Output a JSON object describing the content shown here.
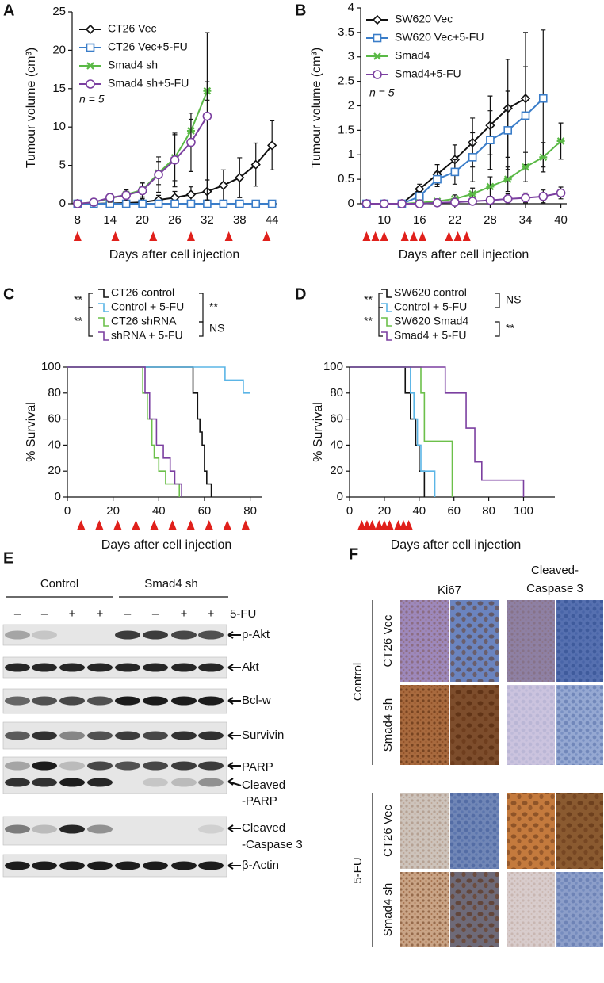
{
  "chart_data": [
    {
      "panel": "A",
      "type": "line",
      "ylabel": "Tumour volume (cm³)",
      "xlabel": "Days after cell injection",
      "annotation": "n = 5",
      "x": [
        8,
        11,
        14,
        17,
        20,
        23,
        26,
        29,
        32,
        35,
        38,
        41,
        44
      ],
      "xlim": [
        7,
        45
      ],
      "xticks": [
        8,
        14,
        20,
        26,
        32,
        38,
        44
      ],
      "ylim": [
        0,
        25
      ],
      "yticks": [
        0,
        5,
        10,
        15,
        20,
        25
      ],
      "treatment_days": [
        8,
        15,
        22,
        29,
        36,
        43
      ],
      "series": [
        {
          "name": "CT26 Vec",
          "color": "#111111",
          "marker": "diamond",
          "values": [
            0,
            0,
            0.05,
            0.1,
            0.2,
            0.5,
            0.8,
            1.2,
            1.6,
            2.4,
            3.4,
            5.1,
            7.6
          ],
          "errors": [
            0,
            0,
            0.1,
            0.2,
            0.3,
            0.6,
            0.8,
            1.0,
            1.5,
            2.0,
            2.6,
            2.8,
            3.2
          ]
        },
        {
          "name": "CT26 Vec+5-FU",
          "color": "#3a7dc9",
          "marker": "square",
          "values": [
            0,
            0,
            0,
            0,
            0,
            0,
            0,
            0,
            0,
            0,
            0,
            0,
            0
          ],
          "errors": [
            0,
            0,
            0,
            0,
            0,
            0,
            0.1,
            0.1,
            0.2,
            0.2,
            0.2,
            0.3,
            0.3
          ]
        },
        {
          "name": "Smad4 sh",
          "color": "#5ab946",
          "marker": "cross",
          "values": [
            0,
            0.2,
            0.7,
            1.2,
            1.8,
            4.0,
            6.0,
            9.5,
            14.7,
            null,
            null,
            null,
            null
          ],
          "errors": [
            0,
            0.3,
            0.5,
            0.6,
            0.9,
            1.5,
            3,
            1.5,
            1.2,
            null,
            null,
            null,
            null
          ]
        },
        {
          "name": "Smad4 sh+5-FU",
          "color": "#7b3fa0",
          "marker": "circle",
          "values": [
            0,
            0.2,
            0.8,
            1.1,
            1.7,
            3.8,
            5.7,
            8.0,
            11.4,
            null,
            null,
            null,
            null
          ],
          "errors": [
            0,
            0.3,
            0.5,
            0.7,
            1,
            2.3,
            3.5,
            3.8,
            10.9,
            null,
            null,
            null,
            null
          ]
        }
      ]
    },
    {
      "panel": "B",
      "type": "line",
      "ylabel": "Tumour volume (cm³)",
      "xlabel": "Days after cell injection",
      "annotation": "n = 5",
      "x": [
        7,
        10,
        13,
        16,
        19,
        22,
        25,
        28,
        31,
        34,
        37,
        40
      ],
      "xlim": [
        6,
        41
      ],
      "xticks": [
        10,
        16,
        22,
        28,
        34,
        40
      ],
      "ylim": [
        0,
        4
      ],
      "yticks": [
        0,
        0.5,
        1,
        1.5,
        2,
        2.5,
        3,
        3.5,
        4
      ],
      "treatment_days": [
        7,
        8.5,
        10,
        13.5,
        15,
        16.5,
        21,
        22.5,
        24
      ],
      "series": [
        {
          "name": "SW620 Vec",
          "color": "#111111",
          "marker": "diamond",
          "values": [
            0,
            0,
            0,
            0.3,
            0.6,
            0.9,
            1.25,
            1.6,
            1.95,
            2.15,
            null,
            null
          ],
          "errors": [
            0,
            0,
            0,
            0.1,
            0.2,
            0.3,
            0.5,
            0.6,
            1.0,
            1.35,
            null,
            null
          ]
        },
        {
          "name": "SW620 Vec+5-FU",
          "color": "#3a7dc9",
          "marker": "square",
          "values": [
            0,
            0,
            0,
            0.15,
            0.5,
            0.65,
            0.95,
            1.3,
            1.5,
            1.8,
            2.15,
            null
          ],
          "errors": [
            0,
            0,
            0,
            0.1,
            0.15,
            0.25,
            0.5,
            0.6,
            0.8,
            1.0,
            1.4,
            null
          ]
        },
        {
          "name": "Smad4",
          "color": "#5ab946",
          "marker": "cross",
          "values": [
            0,
            0,
            0,
            0.02,
            0.05,
            0.1,
            0.2,
            0.35,
            0.5,
            0.75,
            0.95,
            1.28
          ],
          "errors": [
            0,
            0,
            0,
            0.03,
            0.05,
            0.08,
            0.12,
            0.2,
            0.25,
            0.3,
            0.3,
            0.37
          ]
        },
        {
          "name": "Smad4+5-FU",
          "color": "#7b3fa0",
          "marker": "circle",
          "values": [
            0,
            0,
            0,
            0,
            0.02,
            0.03,
            0.05,
            0.07,
            0.1,
            0.12,
            0.15,
            0.22
          ],
          "errors": [
            0,
            0,
            0,
            0,
            0.02,
            0.04,
            0.05,
            0.08,
            0.1,
            0.1,
            0.13,
            0.12
          ]
        }
      ]
    },
    {
      "panel": "C",
      "type": "survival",
      "ylabel": "% Survival",
      "xlabel": "Days after cell injection",
      "xlim": [
        0,
        85
      ],
      "xticks": [
        0,
        20,
        40,
        60,
        80
      ],
      "ylim": [
        0,
        100
      ],
      "yticks": [
        0,
        20,
        40,
        60,
        80,
        100
      ],
      "treatment_days": [
        6,
        14,
        22,
        30,
        38,
        46,
        54,
        62,
        70,
        78
      ],
      "significance": {
        "left": [
          "**",
          "**"
        ],
        "right": [
          "**",
          "NS"
        ]
      },
      "series": [
        {
          "name": "CT26 control",
          "color": "#111111",
          "x": [
            0,
            55,
            57,
            58,
            59,
            60,
            61,
            63
          ],
          "values": [
            100,
            80,
            60,
            50,
            40,
            20,
            10,
            0
          ]
        },
        {
          "name": "Control + 5-FU",
          "color": "#5bb5e6",
          "x": [
            0,
            69,
            77,
            80
          ],
          "values": [
            100,
            90,
            80,
            80
          ]
        },
        {
          "name": "CT26 shRNA",
          "color": "#6cc04a",
          "x": [
            0,
            33,
            35,
            37,
            38,
            40,
            43,
            49
          ],
          "values": [
            100,
            80,
            60,
            40,
            30,
            20,
            10,
            0
          ]
        },
        {
          "name": "shRNA + 5-FU",
          "color": "#7b3fa0",
          "x": [
            0,
            34,
            36,
            39,
            42,
            45,
            47,
            50
          ],
          "values": [
            100,
            80,
            60,
            40,
            30,
            20,
            10,
            0
          ]
        }
      ]
    },
    {
      "panel": "D",
      "type": "survival",
      "ylabel": "% Survival",
      "xlabel": "Days after cell injection",
      "xlim": [
        0,
        118
      ],
      "xticks": [
        0,
        20,
        40,
        60,
        80,
        100
      ],
      "ylim": [
        0,
        100
      ],
      "yticks": [
        0,
        20,
        40,
        60,
        80,
        100
      ],
      "treatment_days": [
        7,
        10,
        13,
        17,
        20,
        23,
        28,
        31,
        34
      ],
      "significance": {
        "left": [
          "**",
          "**"
        ],
        "right": [
          "NS",
          "**"
        ]
      },
      "series": [
        {
          "name": "SW620 control",
          "color": "#111111",
          "x": [
            0,
            32,
            35,
            38,
            40,
            43
          ],
          "values": [
            100,
            80,
            60,
            40,
            20,
            0
          ]
        },
        {
          "name": "Control + 5-FU",
          "color": "#5bb5e6",
          "x": [
            0,
            35,
            37,
            39,
            41,
            49
          ],
          "values": [
            100,
            80,
            60,
            40,
            20,
            0
          ]
        },
        {
          "name": "SW620 Smad4",
          "color": "#6cc04a",
          "x": [
            0,
            41,
            43,
            59
          ],
          "values": [
            100,
            80,
            43,
            0
          ]
        },
        {
          "name": "Smad4 + 5-FU",
          "color": "#7b3fa0",
          "x": [
            0,
            55,
            67,
            72,
            76,
            100
          ],
          "values": [
            100,
            80,
            53,
            27,
            13,
            0
          ]
        }
      ]
    }
  ],
  "blot": {
    "panel": "E",
    "groups": [
      "Control",
      "Smad4 sh"
    ],
    "treatment_signs": [
      "–",
      "–",
      "+",
      "+",
      "–",
      "–",
      "+",
      "+"
    ],
    "treatment_label": "5-FU",
    "rows": [
      [
        "p-Akt"
      ],
      [
        "Akt"
      ],
      [
        "Bcl-w"
      ],
      [
        "Survivin"
      ],
      [
        "PARP"
      ],
      [
        "Cleaved",
        "-PARP"
      ],
      [
        "Cleaved",
        "-Caspase 3"
      ],
      [
        "β-Actin"
      ]
    ]
  },
  "histology": {
    "panel": "F",
    "columns": [
      [
        "Ki67"
      ],
      [
        "Cleaved-",
        "Caspase 3"
      ]
    ],
    "conditions": [
      "Control",
      "5-FU"
    ],
    "rows": [
      "CT26 Vec",
      "Smad4 sh",
      "CT26 Vec",
      "Smad4 sh"
    ]
  }
}
